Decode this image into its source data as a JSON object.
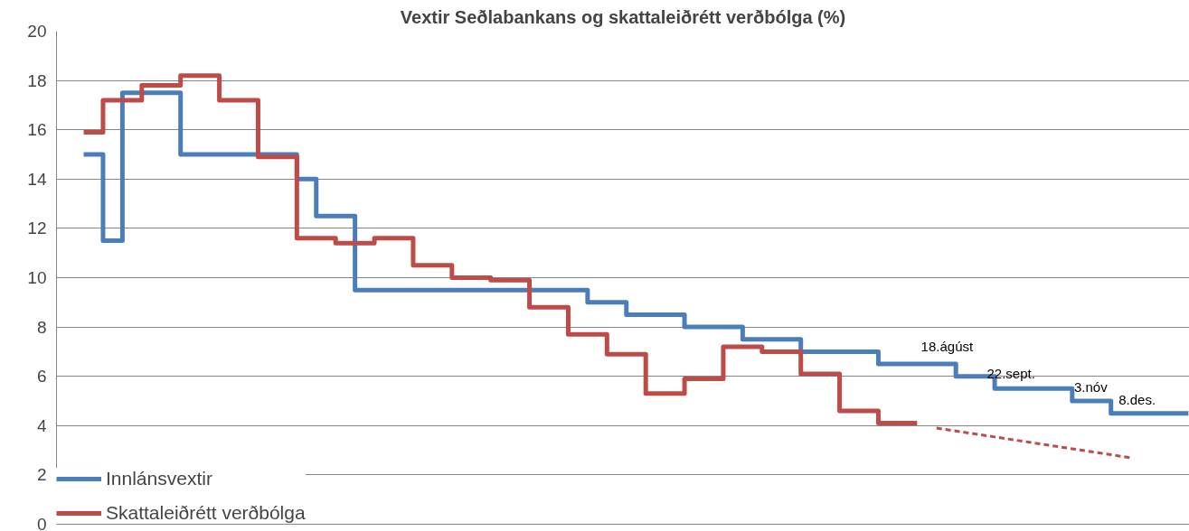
{
  "chart_data": {
    "type": "step",
    "title": "Vextir Seðlabankans og skattaleiðrétt verðbólga (%)",
    "categories": [
      null,
      null,
      null,
      null,
      null,
      null,
      null,
      null,
      null,
      null,
      null,
      null,
      null,
      null,
      null,
      null,
      null,
      null,
      null,
      null,
      null,
      null,
      null,
      null,
      null,
      null,
      null,
      null,
      null,
      null,
      null,
      null,
      null,
      null,
      null,
      null,
      null,
      null,
      null,
      null,
      null,
      null,
      null,
      null,
      null,
      null,
      null,
      null,
      null,
      null,
      null,
      null,
      null,
      null,
      null,
      null,
      null,
      null
    ],
    "series": [
      {
        "name": "Innlánsvextir",
        "color": "#4a7ebb",
        "values": [
          15,
          11.5,
          17.5,
          17.5,
          17.5,
          15,
          15,
          15,
          15,
          15,
          15,
          14,
          12.5,
          12.5,
          9.5,
          9.5,
          9.5,
          9.5,
          9.5,
          9.5,
          9.5,
          9.5,
          9.5,
          9.5,
          9.5,
          9.5,
          9,
          9,
          8.5,
          8.5,
          8.5,
          8,
          8,
          8,
          7.5,
          7.5,
          7.5,
          7,
          7,
          7,
          7,
          6.5,
          6.5,
          6.5,
          6.5,
          6,
          6,
          5.5,
          5.5,
          5.5,
          5.5,
          5,
          5,
          4.5,
          4.5,
          4.5,
          4.5,
          4.5
        ]
      },
      {
        "name": "Skattaleiðrétt verðbólga",
        "color": "#be4b48",
        "values": [
          15.9,
          17.2,
          17.2,
          17.8,
          17.8,
          18.2,
          18.2,
          17.2,
          17.2,
          14.9,
          14.9,
          11.6,
          11.6,
          11.4,
          11.4,
          11.6,
          11.6,
          10.5,
          10.5,
          10.0,
          10.0,
          9.9,
          9.9,
          8.8,
          8.8,
          7.7,
          7.7,
          6.9,
          6.9,
          5.3,
          5.3,
          5.9,
          5.9,
          7.2,
          7.2,
          7.0,
          7.0,
          6.1,
          6.1,
          4.6,
          4.6,
          4.1,
          4.1,
          4.1,
          null,
          null,
          null,
          null,
          null,
          null,
          null,
          null,
          null,
          null,
          null,
          null,
          null,
          null
        ]
      },
      {
        "type": "line",
        "color": "#be4b48",
        "line_style": "dashed",
        "values": [
          null,
          null,
          null,
          null,
          null,
          null,
          null,
          null,
          null,
          null,
          null,
          null,
          null,
          null,
          null,
          null,
          null,
          null,
          null,
          null,
          null,
          null,
          null,
          null,
          null,
          null,
          null,
          null,
          null,
          null,
          null,
          null,
          null,
          null,
          null,
          null,
          null,
          null,
          null,
          null,
          null,
          null,
          null,
          null,
          3.9,
          3.78,
          3.66,
          3.54,
          3.42,
          3.3,
          3.18,
          3.06,
          2.94,
          2.82,
          2.7,
          null,
          null,
          null
        ]
      }
    ],
    "annotations": [
      "18.ágúst",
      "22.sept.",
      "3.nóv",
      "8.des."
    ],
    "ylim": [
      0,
      20
    ],
    "yticks": [
      0,
      2,
      4,
      6,
      8,
      10,
      12,
      14,
      16,
      18,
      20
    ],
    "grid": "y",
    "legend": "bottom left",
    "tick_labels": "y"
  }
}
